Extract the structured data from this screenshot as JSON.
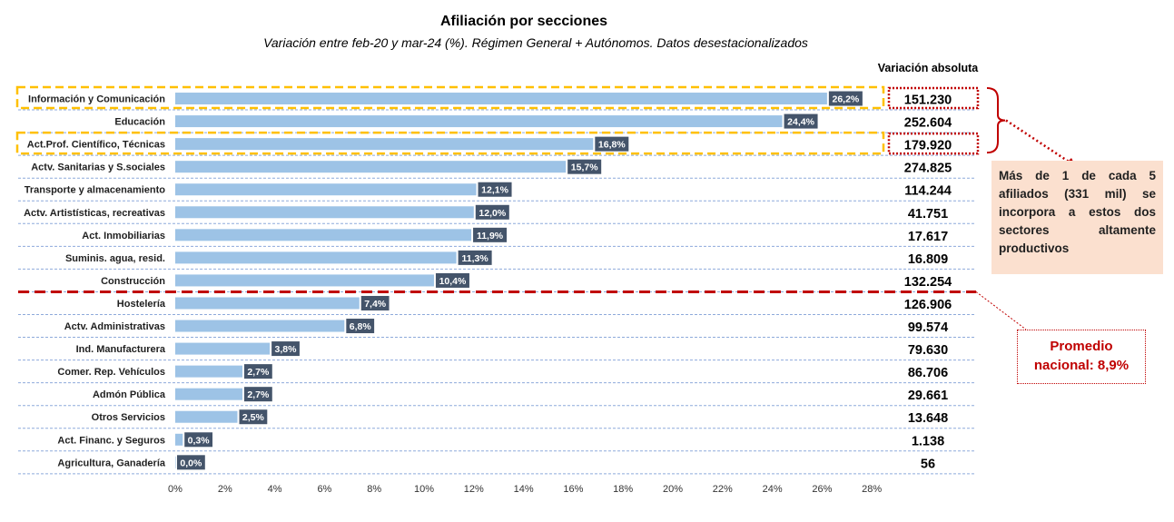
{
  "chart_data": {
    "type": "bar",
    "orientation": "horizontal",
    "title": "Afiliación por secciones",
    "subtitle": "Variación entre feb-20 y mar-24 (%). Régimen General + Autónomos. Datos desestacionalizados",
    "categories": [
      "Información y Comunicación",
      "Educación",
      "Act.Prof. Científico, Técnicas",
      "Actv. Sanitarias y S.sociales",
      "Transporte y almacenamiento",
      "Actv. Artistísticas, recreativas",
      "Act. Inmobiliarias",
      "Suminis. agua, resid.",
      "Construcción",
      "Hostelería",
      "Actv. Administrativas",
      "Ind. Manufacturera",
      "Comer. Rep. Vehículos",
      "Admón Pública",
      "Otros Servicios",
      "Act. Financ. y Seguros",
      "Agricultura, Ganadería"
    ],
    "values": [
      26.2,
      24.4,
      16.8,
      15.7,
      12.1,
      12.0,
      11.9,
      11.3,
      10.4,
      7.4,
      6.8,
      3.8,
      2.7,
      2.7,
      2.5,
      0.3,
      0.0
    ],
    "value_labels": [
      "26,2%",
      "24,4%",
      "16,8%",
      "15,7%",
      "12,1%",
      "12,0%",
      "11,9%",
      "11,3%",
      "10,4%",
      "7,4%",
      "6,8%",
      "3,8%",
      "2,7%",
      "2,7%",
      "2,5%",
      "0,3%",
      "0,0%"
    ],
    "absolute_header": "Variación absoluta",
    "absolute_values": [
      "151.230",
      "252.604",
      "179.920",
      "274.825",
      "114.244",
      "41.751",
      "17.617",
      "16.809",
      "132.254",
      "126.906",
      "99.574",
      "79.630",
      "86.706",
      "29.661",
      "13.648",
      "1.138",
      "56"
    ],
    "x_ticks": [
      0,
      2,
      4,
      6,
      8,
      10,
      12,
      14,
      16,
      18,
      20,
      22,
      24,
      26,
      28
    ],
    "x_tick_labels": [
      "0%",
      "2%",
      "4%",
      "6%",
      "8%",
      "10%",
      "12%",
      "14%",
      "16%",
      "18%",
      "20%",
      "22%",
      "24%",
      "26%",
      "28%"
    ],
    "xlim": [
      0,
      28
    ],
    "highlighted_categories": [
      "Información y Comunicación",
      "Act.Prof. Científico, Técnicas"
    ],
    "reference_line": {
      "after_category": "Construcción",
      "label": "Promedio nacional: 8,9%"
    },
    "annotation": "Más de 1 de cada 5 afiliados (331 mil) se incorpora a estos dos sectores altamente productivos",
    "colors": {
      "bar": "#9dc3e6",
      "data_label_bg": "#44546a",
      "highlight_box": "#ffc000",
      "reference_line": "#c00000",
      "gridline": "#8eaadb",
      "callout_bg": "#fbe0cf"
    }
  },
  "promedio": {
    "line1": "Promedio",
    "line2": "nacional: 8,9%"
  }
}
